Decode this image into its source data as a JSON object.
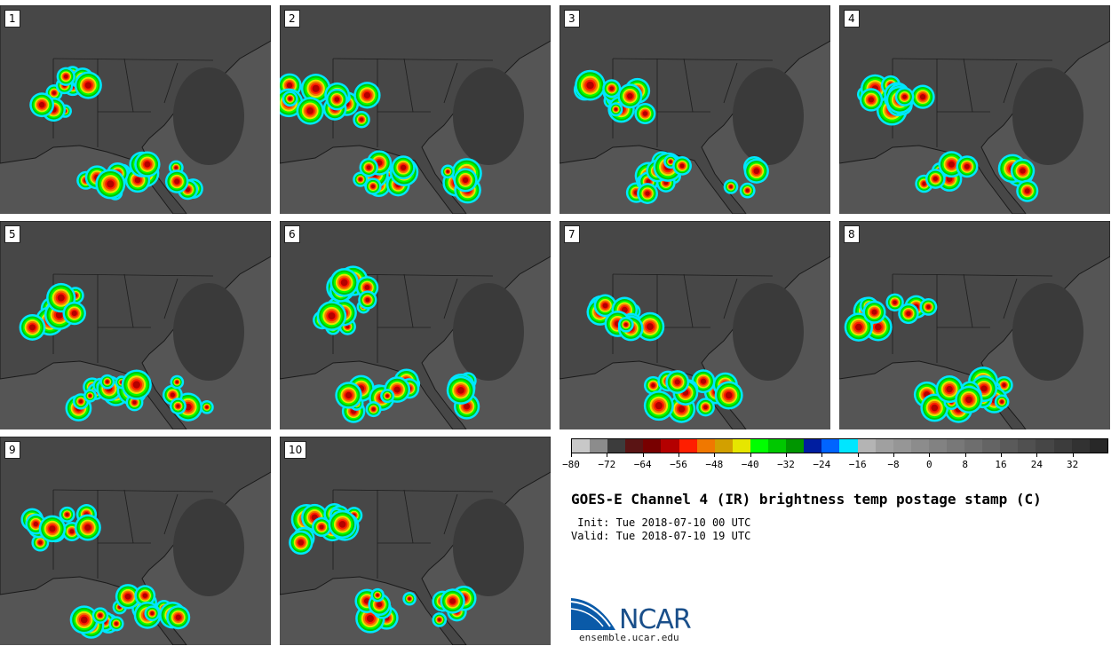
{
  "panels": [
    {
      "label": "1"
    },
    {
      "label": "2"
    },
    {
      "label": "3"
    },
    {
      "label": "4"
    },
    {
      "label": "5"
    },
    {
      "label": "6"
    },
    {
      "label": "7"
    },
    {
      "label": "8"
    },
    {
      "label": "9"
    },
    {
      "label": "10"
    }
  ],
  "colorbar": {
    "colors": [
      "#c8c8c8",
      "#8c8c8c",
      "#3c3c3c",
      "#5a1414",
      "#780000",
      "#b40000",
      "#ff1e00",
      "#f07800",
      "#d2a000",
      "#e6e600",
      "#00ff00",
      "#00c800",
      "#009600",
      "#001ea0",
      "#0064ff",
      "#00e6ff",
      "#b4b4b4",
      "#a0a0a0",
      "#969696",
      "#8c8c8c",
      "#828282",
      "#787878",
      "#6e6e6e",
      "#646464",
      "#5a5a5a",
      "#505050",
      "#464646",
      "#3c3c3c",
      "#323232",
      "#282828"
    ],
    "tick_labels": [
      "-80",
      "-72",
      "-64",
      "-56",
      "-48",
      "-40",
      "-32",
      "-24",
      "-16",
      "-8",
      "0",
      "8",
      "16",
      "24",
      "32"
    ]
  },
  "title": "GOES-E Channel 4 (IR) brightness temp postage stamp (C)",
  "init_line": " Init: Tue 2018-07-10 00 UTC",
  "valid_line": "Valid: Tue 2018-07-10 19 UTC",
  "logo": {
    "text": "NCAR",
    "url": "ensemble.ucar.edu"
  }
}
